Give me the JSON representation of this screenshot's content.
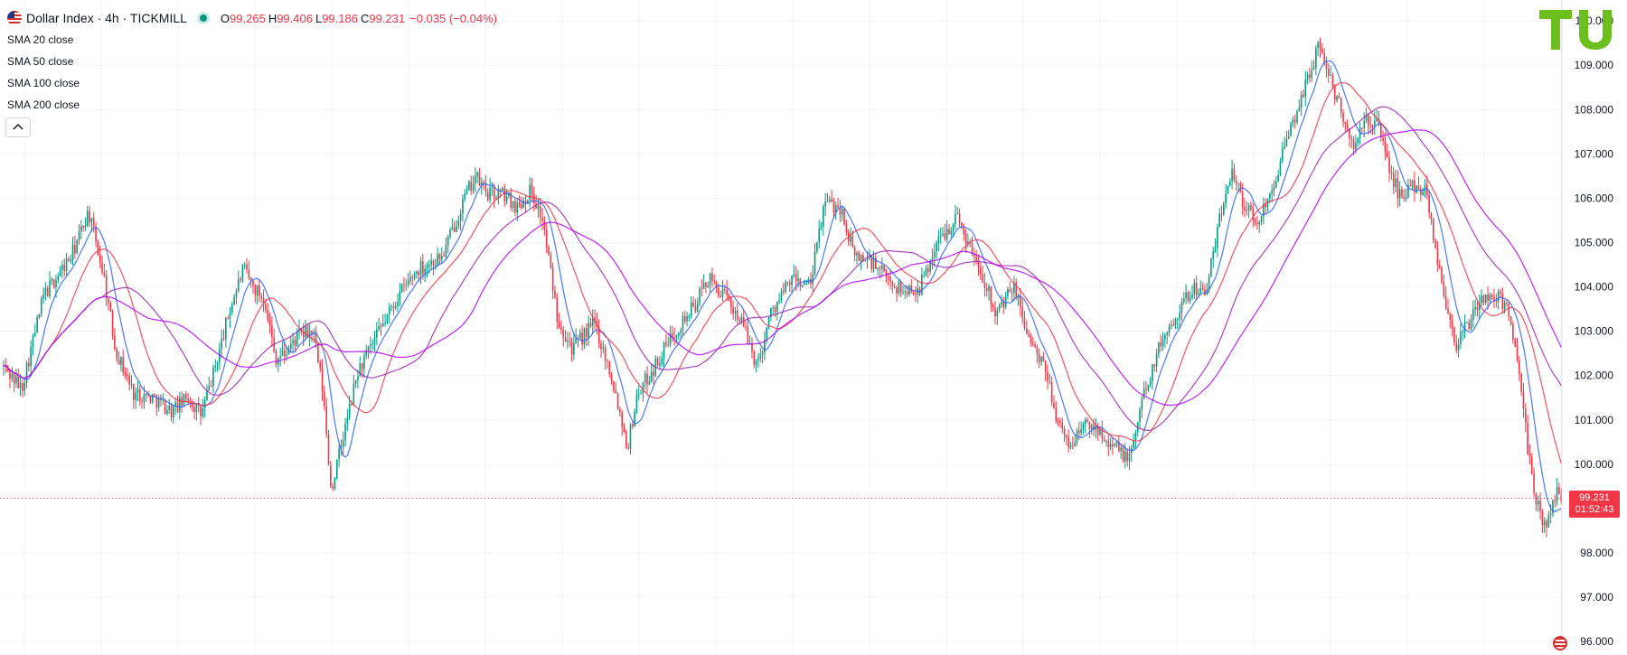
{
  "header": {
    "title": "Dollar Index · 4h · TICKMILL",
    "ohlc": [
      {
        "key": "O",
        "value": "99.265"
      },
      {
        "key": "H",
        "value": "99.406"
      },
      {
        "key": "L",
        "value": "99.186"
      },
      {
        "key": "C",
        "value": "99.231"
      }
    ],
    "change": "−0.035 (−0.04%)",
    "collapse_icon": "chevron-up-icon",
    "flag_icon": "us-flag-icon",
    "logo_text": "TV"
  },
  "indicators": [
    {
      "label": "SMA 20 close",
      "color": "#2962ff"
    },
    {
      "label": "SMA 50 close",
      "color": "#f23645"
    },
    {
      "label": "SMA 100 close",
      "color": "#9c27b0"
    },
    {
      "label": "SMA 200 close",
      "color": "#b200ff"
    }
  ],
  "price_tag": {
    "price": "99.231",
    "countdown": "01:52:43"
  },
  "colors": {
    "up": "#089981",
    "down": "#f23645",
    "grid": "#f0f3fa",
    "logo": "#6cbf1c"
  },
  "chart_data": {
    "type": "candlestick",
    "timeframe": "4h",
    "y_axis_labels": [
      "110.000",
      "109.000",
      "108.000",
      "107.000",
      "106.000",
      "105.000",
      "104.000",
      "103.000",
      "102.000",
      "101.000",
      "100.000",
      "98.000",
      "97.000",
      "96.000"
    ],
    "ylim": [
      95.9,
      110.35
    ],
    "last_price": 99.231,
    "price_path": [
      [
        0,
        102.2
      ],
      [
        18,
        101.7
      ],
      [
        40,
        103.8
      ],
      [
        68,
        104.7
      ],
      [
        85,
        105.7
      ],
      [
        100,
        104.3
      ],
      [
        112,
        102.6
      ],
      [
        130,
        101.6
      ],
      [
        150,
        101.5
      ],
      [
        168,
        101.2
      ],
      [
        185,
        101.5
      ],
      [
        198,
        101.1
      ],
      [
        212,
        102.2
      ],
      [
        228,
        103.6
      ],
      [
        240,
        104.4
      ],
      [
        250,
        104.0
      ],
      [
        262,
        103.7
      ],
      [
        272,
        102.4
      ],
      [
        282,
        102.5
      ],
      [
        295,
        102.9
      ],
      [
        310,
        103.0
      ],
      [
        320,
        101.6
      ],
      [
        328,
        99.4
      ],
      [
        340,
        100.6
      ],
      [
        355,
        102.1
      ],
      [
        372,
        102.8
      ],
      [
        395,
        103.8
      ],
      [
        415,
        104.4
      ],
      [
        440,
        104.7
      ],
      [
        458,
        105.8
      ],
      [
        472,
        106.5
      ],
      [
        485,
        106.1
      ],
      [
        500,
        106.1
      ],
      [
        515,
        105.8
      ],
      [
        528,
        106.2
      ],
      [
        540,
        105.5
      ],
      [
        555,
        103.3
      ],
      [
        570,
        102.6
      ],
      [
        592,
        103.2
      ],
      [
        610,
        101.9
      ],
      [
        625,
        100.4
      ],
      [
        635,
        101.6
      ],
      [
        652,
        102.2
      ],
      [
        672,
        103.0
      ],
      [
        693,
        103.6
      ],
      [
        705,
        104.2
      ],
      [
        718,
        103.9
      ],
      [
        738,
        103.3
      ],
      [
        755,
        102.2
      ],
      [
        768,
        103.4
      ],
      [
        790,
        104.2
      ],
      [
        808,
        104.0
      ],
      [
        822,
        105.9
      ],
      [
        838,
        105.8
      ],
      [
        852,
        104.7
      ],
      [
        868,
        104.6
      ],
      [
        880,
        104.3
      ],
      [
        900,
        103.9
      ],
      [
        918,
        104.0
      ],
      [
        935,
        105.0
      ],
      [
        955,
        105.6
      ],
      [
        968,
        104.9
      ],
      [
        980,
        104.3
      ],
      [
        995,
        103.4
      ],
      [
        1012,
        104.0
      ],
      [
        1028,
        102.8
      ],
      [
        1045,
        102.0
      ],
      [
        1058,
        100.8
      ],
      [
        1068,
        100.4
      ],
      [
        1082,
        100.9
      ],
      [
        1098,
        100.8
      ],
      [
        1112,
        100.4
      ],
      [
        1128,
        100.1
      ],
      [
        1142,
        101.6
      ],
      [
        1162,
        102.9
      ],
      [
        1178,
        103.5
      ],
      [
        1192,
        104.0
      ],
      [
        1205,
        103.9
      ],
      [
        1218,
        105.5
      ],
      [
        1230,
        106.7
      ],
      [
        1242,
        105.9
      ],
      [
        1255,
        105.4
      ],
      [
        1268,
        106.1
      ],
      [
        1280,
        106.9
      ],
      [
        1293,
        107.8
      ],
      [
        1305,
        108.6
      ],
      [
        1318,
        109.5
      ],
      [
        1330,
        108.6
      ],
      [
        1342,
        107.8
      ],
      [
        1353,
        107.1
      ],
      [
        1365,
        107.8
      ],
      [
        1378,
        107.6
      ],
      [
        1390,
        106.5
      ],
      [
        1400,
        106.0
      ],
      [
        1412,
        106.3
      ],
      [
        1425,
        106.2
      ],
      [
        1432,
        105.2
      ],
      [
        1442,
        103.9
      ],
      [
        1455,
        102.7
      ],
      [
        1468,
        103.2
      ],
      [
        1480,
        103.7
      ],
      [
        1492,
        103.8
      ],
      [
        1500,
        103.7
      ],
      [
        1508,
        103.5
      ],
      [
        1515,
        102.4
      ],
      [
        1522,
        101.3
      ],
      [
        1528,
        100.1
      ],
      [
        1533,
        99.4
      ],
      [
        1538,
        99.0
      ],
      [
        1544,
        98.6
      ],
      [
        1550,
        98.9
      ],
      [
        1556,
        99.4
      ],
      [
        1561,
        99.25
      ]
    ]
  }
}
